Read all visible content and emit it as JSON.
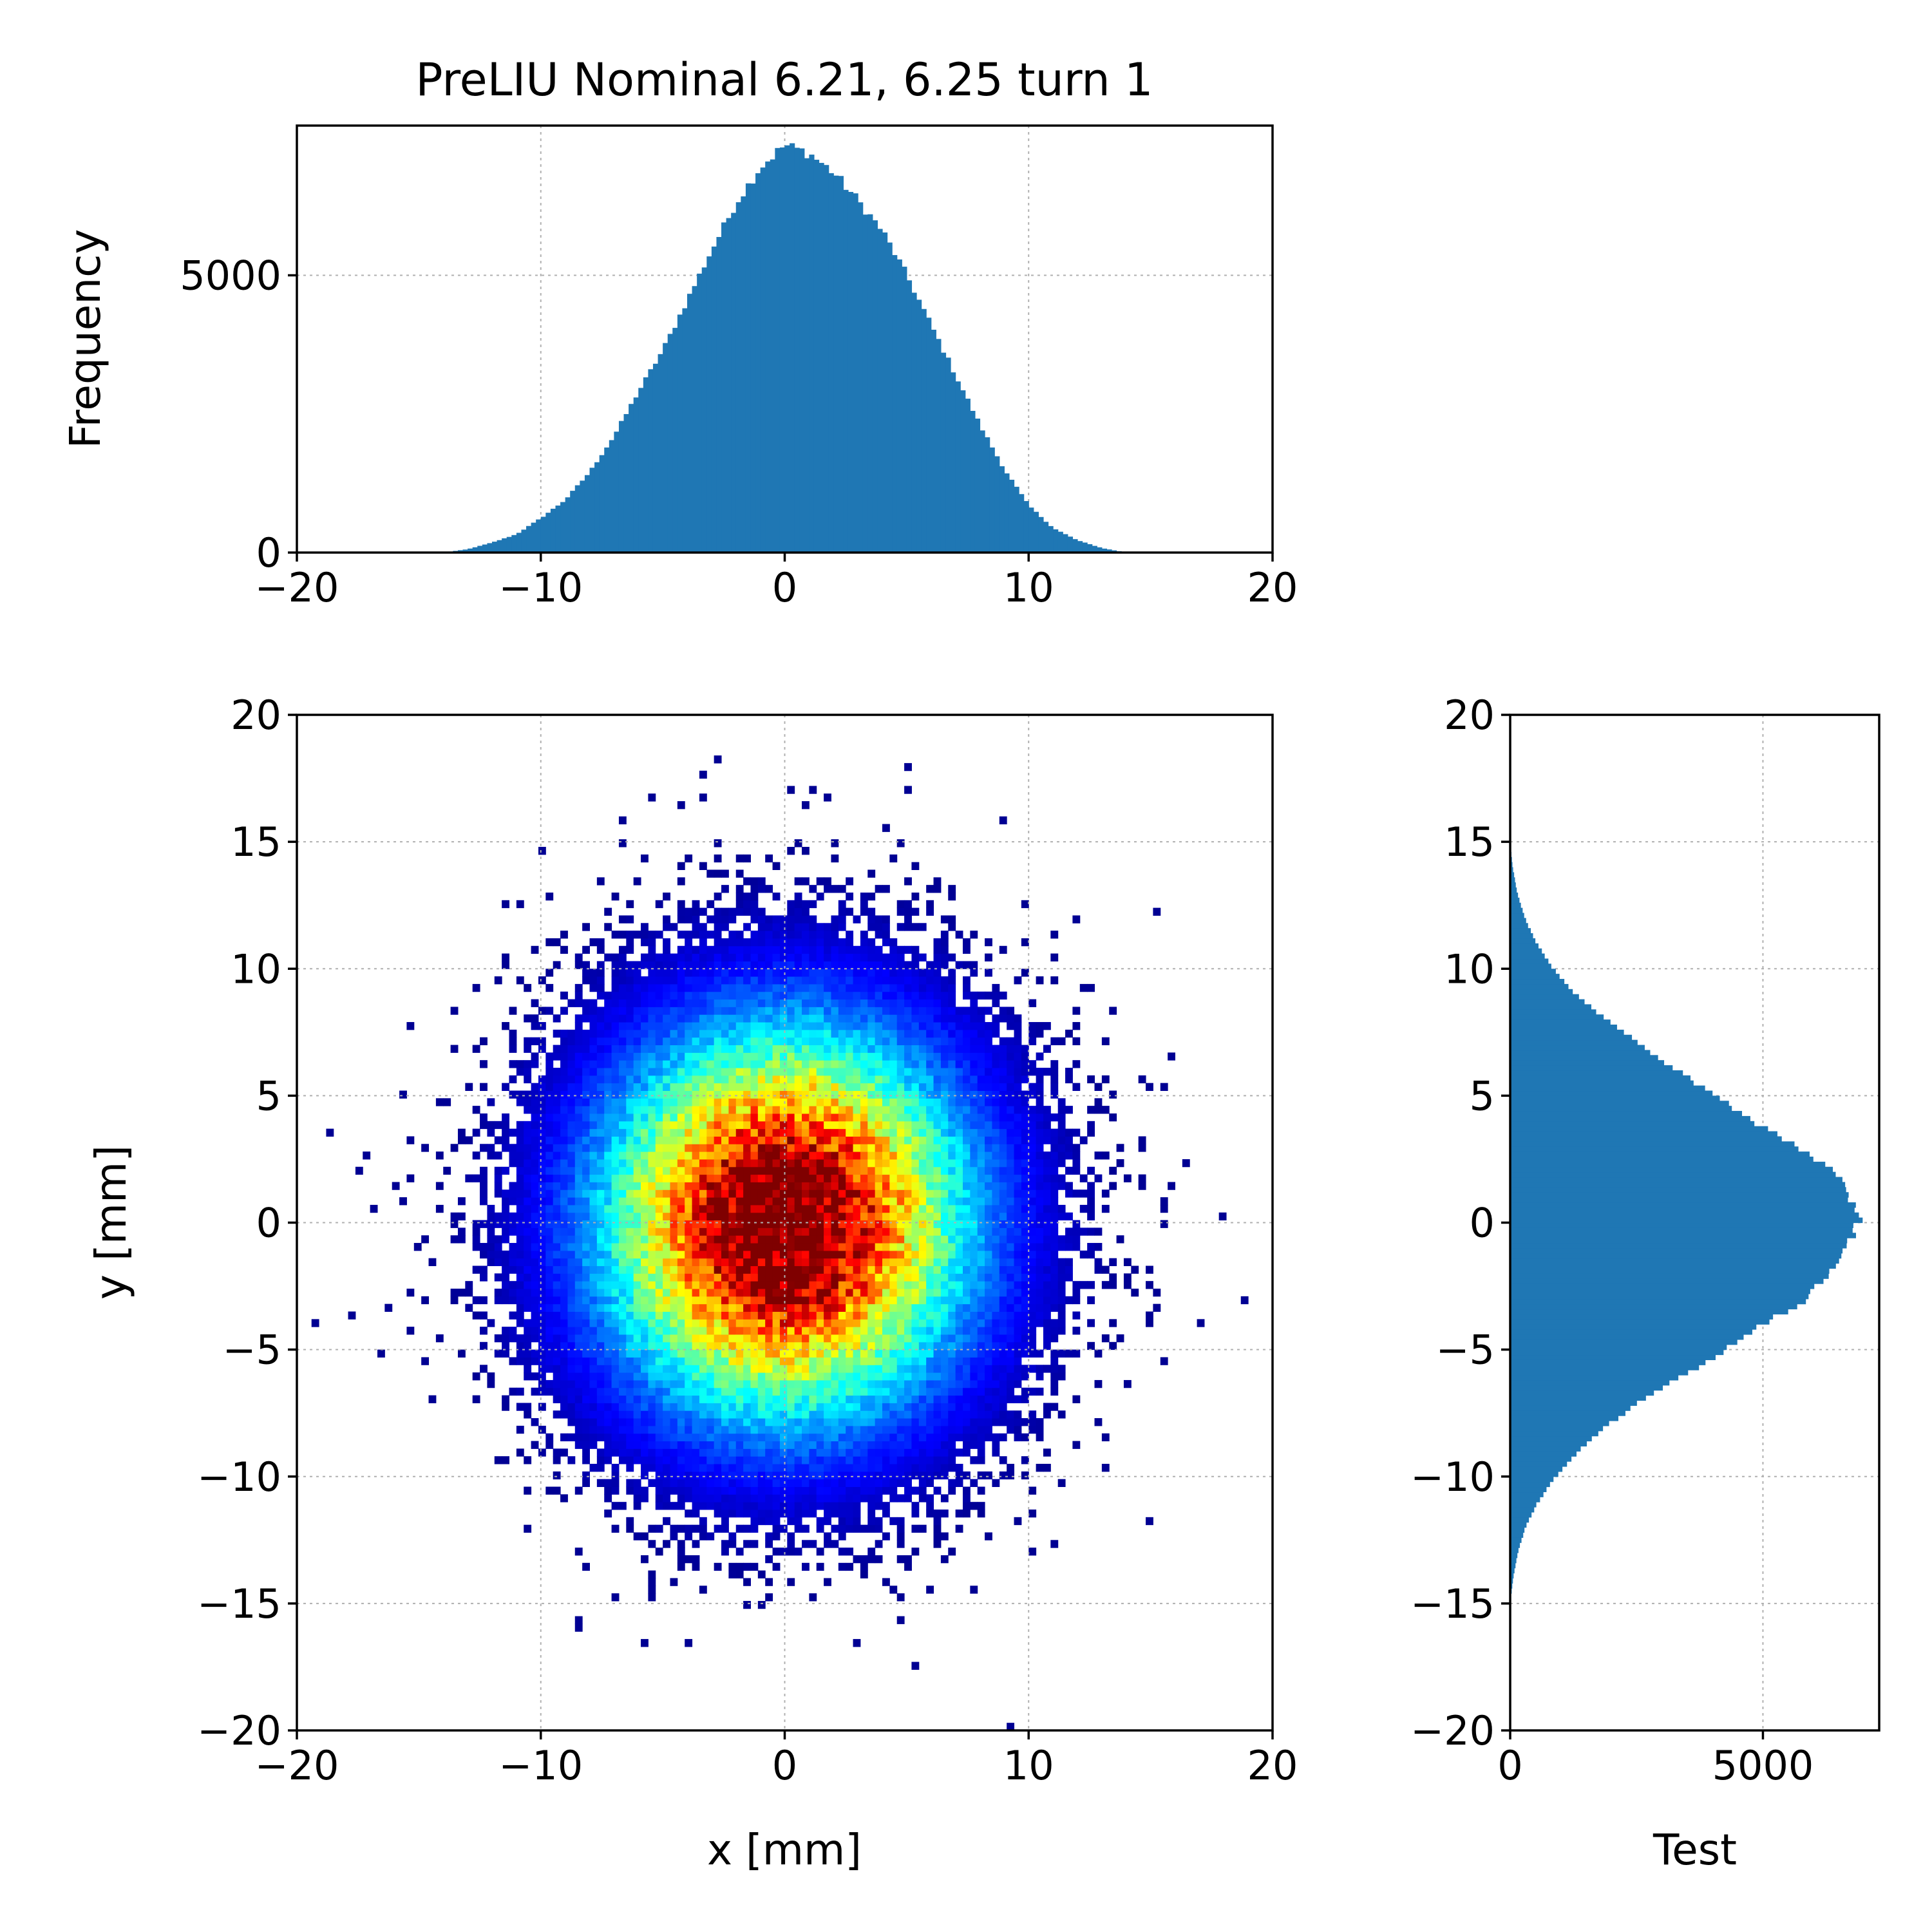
{
  "colors": {
    "histogram": "#1f77b4",
    "colormap": [
      "#00007f",
      "#0000ff",
      "#007fff",
      "#00ffff",
      "#7fff7f",
      "#ffff00",
      "#ff7f00",
      "#ff0000",
      "#7f0000"
    ]
  },
  "chart_data": [
    {
      "type": "bar",
      "panel": "top-histogram",
      "title": "PreLIU Nominal 6.21, 6.25 turn 1",
      "xlabel": "",
      "ylabel": "Frequency",
      "xlim": [
        -20,
        20
      ],
      "ylim": [
        0,
        7700
      ],
      "xticks": [
        -20,
        -10,
        0,
        10,
        20
      ],
      "xtick_labels": [
        "−20",
        "−10",
        "0",
        "10",
        "20"
      ],
      "yticks": [
        0,
        5000
      ],
      "ytick_labels": [
        "0",
        "5000"
      ],
      "grid": true,
      "bin_width": 0.2,
      "x": [
        -14,
        -13,
        -12,
        -11,
        -10,
        -9,
        -8,
        -7,
        -6,
        -5,
        -4,
        -3,
        -2,
        -1,
        0,
        1,
        2,
        3,
        4,
        5,
        6,
        7,
        8,
        9,
        10,
        11,
        12,
        13,
        14
      ],
      "values": [
        0,
        60,
        180,
        330,
        620,
        950,
        1450,
        2100,
        2900,
        3650,
        4550,
        5450,
        6300,
        6950,
        7350,
        7200,
        6850,
        6350,
        5800,
        5000,
        4100,
        3200,
        2300,
        1500,
        850,
        440,
        220,
        80,
        0
      ]
    },
    {
      "type": "heatmap",
      "panel": "scatter-density",
      "xlabel": "x [mm]",
      "ylabel": "y [mm]",
      "xlim": [
        -20,
        20
      ],
      "ylim": [
        -20,
        20
      ],
      "xticks": [
        -20,
        -10,
        0,
        10,
        20
      ],
      "xtick_labels": [
        "−20",
        "−10",
        "0",
        "10",
        "20"
      ],
      "yticks": [
        -20,
        -15,
        -10,
        -5,
        0,
        5,
        10,
        15,
        20
      ],
      "ytick_labels": [
        "−20",
        "−15",
        "−10",
        "−5",
        "0",
        "5",
        "10",
        "15",
        "20"
      ],
      "grid": true,
      "center": [
        0,
        0
      ],
      "sigma_x": 4.9,
      "sigma_y": 5.0,
      "colormap": "jet"
    },
    {
      "type": "bar",
      "orientation": "horizontal",
      "panel": "right-histogram",
      "xlabel": "Test",
      "ylabel": "",
      "xlim": [
        0,
        7300
      ],
      "ylim": [
        -20,
        20
      ],
      "xticks": [
        0,
        5000
      ],
      "xtick_labels": [
        "0",
        "5000"
      ],
      "yticks": [
        -20,
        -15,
        -10,
        -5,
        0,
        5,
        10,
        15,
        20
      ],
      "ytick_labels": [
        "−20",
        "−15",
        "−10",
        "−5",
        "0",
        "5",
        "10",
        "15",
        "20"
      ],
      "grid": true,
      "bin_width": 0.2,
      "y": [
        -15,
        -14,
        -13,
        -12,
        -11,
        -10,
        -9,
        -8,
        -7,
        -6,
        -5,
        -4,
        -3,
        -2,
        -1,
        0,
        1,
        2,
        3,
        4,
        5,
        6,
        7,
        8,
        9,
        10,
        11,
        12,
        13,
        14,
        15
      ],
      "values": [
        0,
        60,
        150,
        300,
        550,
        900,
        1350,
        1900,
        2600,
        3450,
        4250,
        5000,
        5850,
        6350,
        6650,
        6900,
        6750,
        6400,
        5650,
        4800,
        4050,
        3300,
        2600,
        1900,
        1300,
        850,
        520,
        290,
        140,
        50,
        0
      ]
    }
  ]
}
